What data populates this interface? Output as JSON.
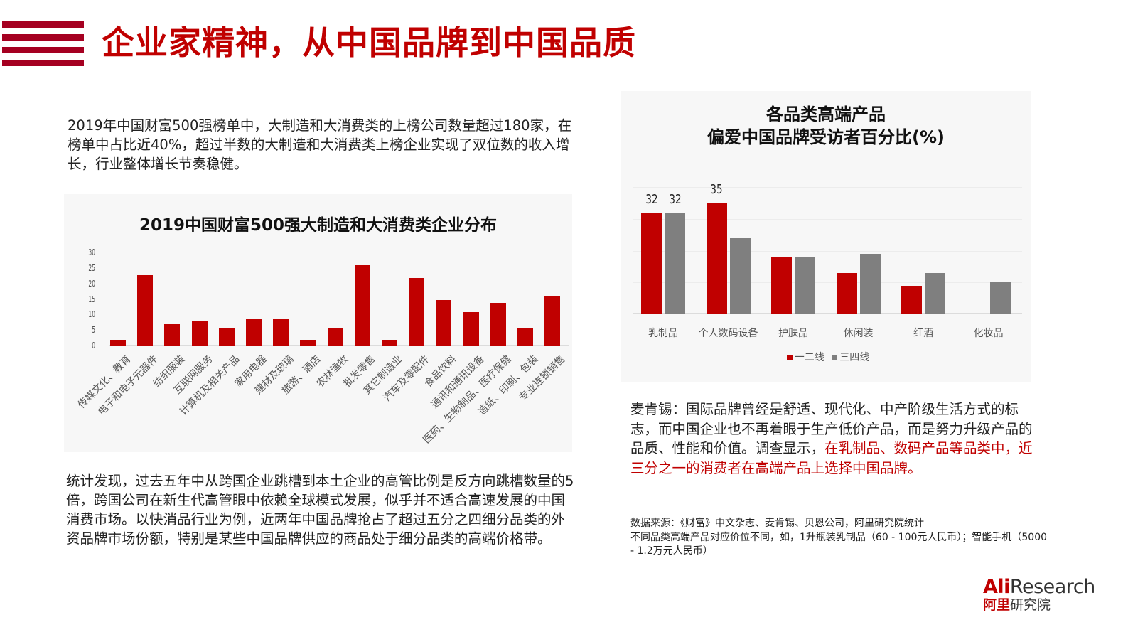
{
  "header": {
    "title": "企业家精神，从中国品牌到中国品质",
    "accent_color": "#c00000",
    "stripe_color": "#a50021"
  },
  "left": {
    "intro": "2019年中国财富500强榜单中，大制造和大消费类的上榜公司数量超过180家，在榜单中占比近40%，超过半数的大制造和大消费类上榜企业实现了双位数的收入增长，行业整体增长节奏稳健。",
    "conclusion": "统计发现，过去五年中从跨国企业跳槽到本土企业的高管比例是反方向跳槽数量的5倍，跨国公司在新生代高管眼中依赖全球模式发展，似乎并不适合高速发展的中国消费市场。以快消品行业为例，近两年中国品牌抢占了超过五分之四细分品类的外资品牌市场份额，特别是某些中国品牌供应的商品处于细分品类的高端价格带。"
  },
  "right": {
    "quote_plain": "麦肯锡：国际品牌曾经是舒适、现代化、中产阶级生活方式的标志，而中国企业也不再着眼于生产低价产品，而是努力升级产品的品质、性能和价值。调查显示，",
    "quote_highlight": "在乳制品、数码产品等品类中，近三分之一的消费者在高端产品上选择中国品牌。",
    "source_line": "数据来源：《财富》中文杂志、麦肯锡、贝恩公司，阿里研究院统计",
    "note_line": "不同品类高端产品对应价位不同，如，1升瓶装乳制品（60 - 100元人民币）；智能手机（5000 - 1.2万元人民币）"
  },
  "logo": {
    "en_prefix": "Ali",
    "en_suffix": "Research",
    "cn_prefix": "阿里",
    "cn_suffix": "研究院"
  },
  "chart_data": [
    {
      "type": "bar",
      "title": "2019中国财富500强大制造和大消费类企业分布",
      "categories": [
        "传媒文化、教育",
        "电子和电子元器件",
        "纺织服装",
        "互联网服务",
        "计算机及相关产品",
        "家用电器",
        "建材及玻璃",
        "旅游、酒店",
        "农林渔牧",
        "批发零售",
        "其它制造业",
        "汽车及零配件",
        "食品饮料",
        "通讯和通讯设备",
        "医药、生物制品、医疗保健",
        "造纸、印刷、包装",
        "专业连锁销售"
      ],
      "values": [
        2,
        23,
        7,
        8,
        6,
        9,
        9,
        2,
        6,
        26,
        2,
        22,
        15,
        11,
        14,
        6,
        16
      ],
      "yticks": [
        "0",
        "5",
        "10",
        "15",
        "20",
        "25",
        "30"
      ],
      "ylim": [
        0,
        30
      ],
      "xlabel": "",
      "ylabel": "",
      "color": "#c00000",
      "grid": false
    },
    {
      "type": "bar",
      "title": "各品类高端产品偏爱中国品牌受访者百分比(%)",
      "title_line1": "各品类高端产品",
      "title_line2": "偏爱中国品牌受访者百分比(%)",
      "categories": [
        "乳制品",
        "个人数码设备",
        "护肤品",
        "休闲装",
        "红酒",
        "化妆品"
      ],
      "series": [
        {
          "name": "一二线",
          "color": "#c00000",
          "values": [
            32,
            35,
            18,
            13,
            9,
            null
          ]
        },
        {
          "name": "三四线",
          "color": "#7f7f7f",
          "values": [
            32,
            24,
            18,
            19,
            13,
            10
          ]
        }
      ],
      "data_labels": [
        {
          "category": "乳制品",
          "series": "一二线",
          "text": "32"
        },
        {
          "category": "乳制品",
          "series": "三四线",
          "text": "32"
        },
        {
          "category": "个人数码设备",
          "series": "一二线",
          "text": "35"
        }
      ],
      "ylim": [
        0,
        40
      ],
      "grid": true,
      "legend_position": "bottom"
    }
  ]
}
